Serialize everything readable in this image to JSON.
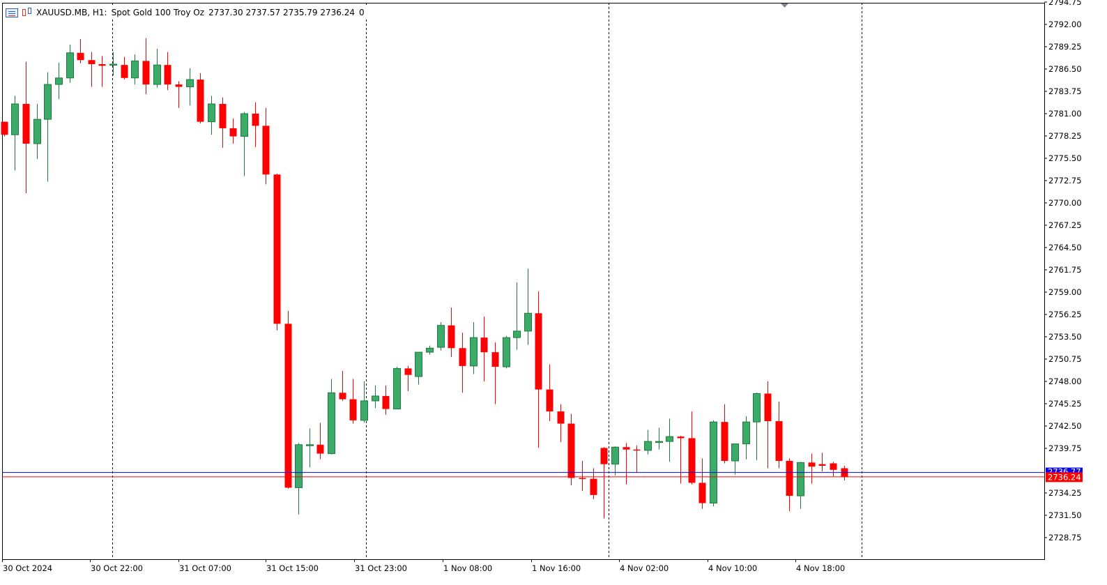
{
  "header": {
    "symbol": "XAUUSD.MB, H1:",
    "description": "Spot Gold 100 Troy Oz",
    "ohlc": "2737.30 2737.57 2735.79 2736.24",
    "volume": "0"
  },
  "colors": {
    "bull": "#3caa68",
    "bear": "#ff0000",
    "ask_line": "#0000ff",
    "bid_line": "#ff0000",
    "grid_separator": "#000000",
    "axis": "#000000"
  },
  "chart_data": {
    "type": "candlestick",
    "ylim": [
      2726.6,
      2795.0
    ],
    "y_ticks": [
      "2794.75",
      "2792.00",
      "2789.25",
      "2786.50",
      "2783.75",
      "2781.00",
      "2778.25",
      "2775.50",
      "2772.75",
      "2770.00",
      "2767.25",
      "2764.50",
      "2761.75",
      "2759.00",
      "2756.25",
      "2753.50",
      "2750.75",
      "2748.00",
      "2745.25",
      "2742.50",
      "2739.75",
      "2736.24",
      "2734.25",
      "2731.50",
      "2728.75"
    ],
    "x_labels": [
      "30 Oct 2024",
      "30 Oct 22:00",
      "31 Oct 07:00",
      "31 Oct 15:00",
      "31 Oct 23:00",
      "1 Nov 08:00",
      "1 Nov 16:00",
      "4 Nov 02:00",
      "4 Nov 10:00",
      "4 Nov 18:00"
    ],
    "ask_price": "2736.77",
    "bid_price": "2736.24",
    "candles": [
      {
        "o": 2780.0,
        "h": 2780.0,
        "l": 2778.2,
        "c": 2778.4
      },
      {
        "o": 2778.4,
        "h": 2783.2,
        "l": 2774.0,
        "c": 2782.2
      },
      {
        "o": 2782.2,
        "h": 2787.4,
        "l": 2771.2,
        "c": 2777.3
      },
      {
        "o": 2777.3,
        "h": 2782.2,
        "l": 2775.4,
        "c": 2780.3
      },
      {
        "o": 2780.3,
        "h": 2786.1,
        "l": 2772.6,
        "c": 2784.6
      },
      {
        "o": 2784.6,
        "h": 2787.3,
        "l": 2782.8,
        "c": 2785.4
      },
      {
        "o": 2785.4,
        "h": 2789.5,
        "l": 2784.8,
        "c": 2788.5
      },
      {
        "o": 2788.5,
        "h": 2790.2,
        "l": 2787.2,
        "c": 2787.6
      },
      {
        "o": 2787.6,
        "h": 2788.6,
        "l": 2784.3,
        "c": 2787.1
      },
      {
        "o": 2787.1,
        "h": 2788.1,
        "l": 2784.3,
        "c": 2786.9
      },
      {
        "o": 2787.1,
        "h": 2788.6,
        "l": 2785.7,
        "c": 2787.1
      },
      {
        "o": 2787.0,
        "h": 2788.0,
        "l": 2785.2,
        "c": 2785.4
      },
      {
        "o": 2785.4,
        "h": 2788.3,
        "l": 2784.6,
        "c": 2787.5
      },
      {
        "o": 2787.5,
        "h": 2790.3,
        "l": 2783.4,
        "c": 2784.6
      },
      {
        "o": 2784.6,
        "h": 2789.0,
        "l": 2784.2,
        "c": 2787.0
      },
      {
        "o": 2787.0,
        "h": 2788.6,
        "l": 2783.9,
        "c": 2784.6
      },
      {
        "o": 2784.6,
        "h": 2785.0,
        "l": 2781.7,
        "c": 2784.3
      },
      {
        "o": 2784.3,
        "h": 2786.6,
        "l": 2782.0,
        "c": 2785.2
      },
      {
        "o": 2785.2,
        "h": 2786.0,
        "l": 2779.8,
        "c": 2780.0
      },
      {
        "o": 2780.0,
        "h": 2783.2,
        "l": 2778.4,
        "c": 2782.2
      },
      {
        "o": 2782.2,
        "h": 2783.0,
        "l": 2776.8,
        "c": 2779.2
      },
      {
        "o": 2779.2,
        "h": 2780.4,
        "l": 2777.3,
        "c": 2778.2
      },
      {
        "o": 2778.2,
        "h": 2781.2,
        "l": 2773.3,
        "c": 2781.0
      },
      {
        "o": 2781.0,
        "h": 2782.4,
        "l": 2776.9,
        "c": 2779.5
      },
      {
        "o": 2779.5,
        "h": 2781.7,
        "l": 2772.3,
        "c": 2773.5
      },
      {
        "o": 2773.5,
        "h": 2773.6,
        "l": 2754.3,
        "c": 2755.1
      },
      {
        "o": 2755.1,
        "h": 2756.7,
        "l": 2734.8,
        "c": 2734.9
      },
      {
        "o": 2734.9,
        "h": 2740.4,
        "l": 2731.6,
        "c": 2740.2
      },
      {
        "o": 2740.2,
        "h": 2742.2,
        "l": 2737.4,
        "c": 2740.2
      },
      {
        "o": 2740.2,
        "h": 2742.9,
        "l": 2738.4,
        "c": 2739.1
      },
      {
        "o": 2739.1,
        "h": 2748.3,
        "l": 2739.0,
        "c": 2746.6
      },
      {
        "o": 2746.6,
        "h": 2749.3,
        "l": 2745.6,
        "c": 2745.8
      },
      {
        "o": 2745.8,
        "h": 2748.3,
        "l": 2742.8,
        "c": 2743.2
      },
      {
        "o": 2743.2,
        "h": 2748.0,
        "l": 2742.9,
        "c": 2745.6
      },
      {
        "o": 2745.6,
        "h": 2747.5,
        "l": 2744.7,
        "c": 2746.2
      },
      {
        "o": 2746.2,
        "h": 2747.5,
        "l": 2743.9,
        "c": 2744.6
      },
      {
        "o": 2744.6,
        "h": 2749.8,
        "l": 2744.6,
        "c": 2749.6
      },
      {
        "o": 2749.6,
        "h": 2749.9,
        "l": 2746.8,
        "c": 2748.8
      },
      {
        "o": 2748.6,
        "h": 2751.3,
        "l": 2747.6,
        "c": 2751.6
      },
      {
        "o": 2751.6,
        "h": 2752.4,
        "l": 2751.3,
        "c": 2752.1
      },
      {
        "o": 2752.2,
        "h": 2755.3,
        "l": 2751.8,
        "c": 2754.9
      },
      {
        "o": 2754.9,
        "h": 2757.1,
        "l": 2751.0,
        "c": 2752.1
      },
      {
        "o": 2752.1,
        "h": 2754.0,
        "l": 2746.6,
        "c": 2749.9
      },
      {
        "o": 2749.9,
        "h": 2755.3,
        "l": 2748.9,
        "c": 2753.4
      },
      {
        "o": 2753.4,
        "h": 2756.0,
        "l": 2748.0,
        "c": 2751.6
      },
      {
        "o": 2751.6,
        "h": 2752.8,
        "l": 2745.2,
        "c": 2749.8
      },
      {
        "o": 2749.8,
        "h": 2753.6,
        "l": 2749.6,
        "c": 2753.4
      },
      {
        "o": 2753.4,
        "h": 2760.2,
        "l": 2751.9,
        "c": 2754.2
      },
      {
        "o": 2754.2,
        "h": 2761.9,
        "l": 2752.5,
        "c": 2756.4
      },
      {
        "o": 2756.4,
        "h": 2759.1,
        "l": 2739.8,
        "c": 2747.0
      },
      {
        "o": 2747.0,
        "h": 2750.1,
        "l": 2743.1,
        "c": 2744.3
      },
      {
        "o": 2744.3,
        "h": 2745.2,
        "l": 2740.5,
        "c": 2742.8
      },
      {
        "o": 2742.8,
        "h": 2744.0,
        "l": 2735.2,
        "c": 2736.1
      },
      {
        "o": 2736.1,
        "h": 2738.2,
        "l": 2734.5,
        "c": 2736.0
      },
      {
        "o": 2736.0,
        "h": 2737.3,
        "l": 2733.5,
        "c": 2734.0
      },
      {
        "o": 2739.8,
        "h": 2739.9,
        "l": 2731.1,
        "c": 2737.8
      },
      {
        "o": 2737.8,
        "h": 2740.0,
        "l": 2736.4,
        "c": 2739.9
      },
      {
        "o": 2739.9,
        "h": 2740.4,
        "l": 2735.3,
        "c": 2739.6
      },
      {
        "o": 2739.6,
        "h": 2740.1,
        "l": 2736.8,
        "c": 2739.5
      },
      {
        "o": 2739.5,
        "h": 2742.0,
        "l": 2739.0,
        "c": 2740.6
      },
      {
        "o": 2740.6,
        "h": 2742.3,
        "l": 2739.6,
        "c": 2740.6
      },
      {
        "o": 2740.6,
        "h": 2743.4,
        "l": 2738.1,
        "c": 2741.2
      },
      {
        "o": 2741.2,
        "h": 2741.3,
        "l": 2735.4,
        "c": 2741.0
      },
      {
        "o": 2741.0,
        "h": 2744.3,
        "l": 2735.3,
        "c": 2735.5
      },
      {
        "o": 2735.5,
        "h": 2738.5,
        "l": 2732.3,
        "c": 2733.0
      },
      {
        "o": 2733.0,
        "h": 2743.2,
        "l": 2732.6,
        "c": 2743.0
      },
      {
        "o": 2743.0,
        "h": 2745.2,
        "l": 2737.9,
        "c": 2738.2
      },
      {
        "o": 2738.2,
        "h": 2740.3,
        "l": 2736.5,
        "c": 2740.3
      },
      {
        "o": 2740.3,
        "h": 2743.7,
        "l": 2738.4,
        "c": 2743.0
      },
      {
        "o": 2743.0,
        "h": 2746.6,
        "l": 2738.3,
        "c": 2746.5
      },
      {
        "o": 2746.5,
        "h": 2748.0,
        "l": 2737.3,
        "c": 2743.1
      },
      {
        "o": 2743.1,
        "h": 2745.5,
        "l": 2737.3,
        "c": 2738.2
      },
      {
        "o": 2738.2,
        "h": 2738.5,
        "l": 2732.0,
        "c": 2733.9
      },
      {
        "o": 2733.9,
        "h": 2738.1,
        "l": 2732.3,
        "c": 2738.0
      },
      {
        "o": 2738.0,
        "h": 2739.1,
        "l": 2735.4,
        "c": 2737.5
      },
      {
        "o": 2737.8,
        "h": 2739.2,
        "l": 2736.9,
        "c": 2737.6
      },
      {
        "o": 2737.9,
        "h": 2738.1,
        "l": 2736.3,
        "c": 2737.1
      },
      {
        "o": 2737.3,
        "h": 2737.6,
        "l": 2735.8,
        "c": 2736.2
      }
    ]
  }
}
